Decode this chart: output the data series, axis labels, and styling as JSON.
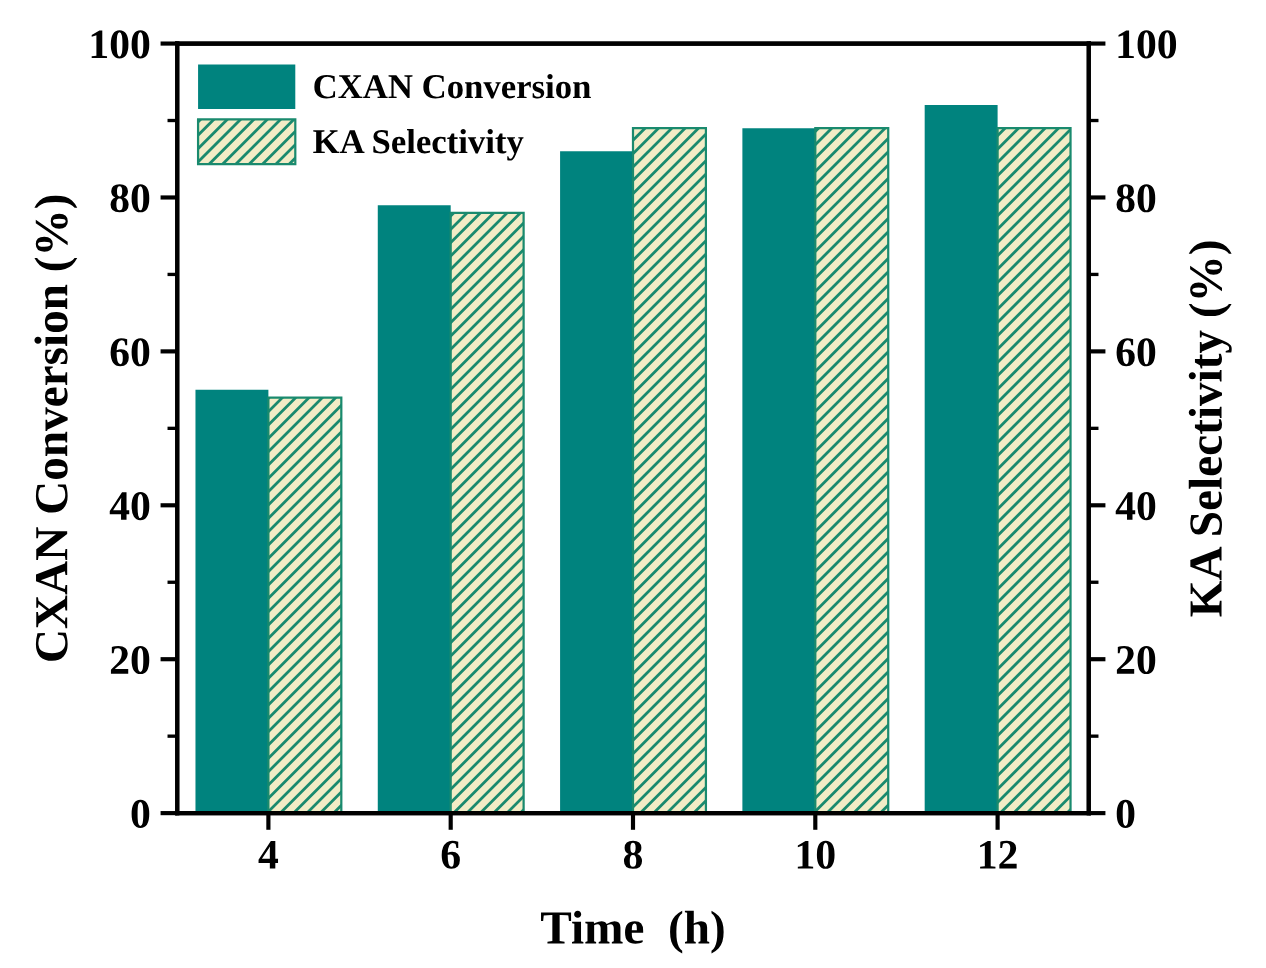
{
  "chart_data": {
    "type": "bar",
    "categories": [
      "4",
      "6",
      "8",
      "10",
      "12"
    ],
    "xlabel": "Time  (h)",
    "ylabel": "CXAN Conversion (%)",
    "y2label": "KA Selectivity (%)",
    "series": [
      {
        "name": "CXAN Conversion",
        "color": "#00837e",
        "values": [
          55,
          79,
          86,
          89,
          92
        ]
      },
      {
        "name": "KA Selectivity",
        "color": "#1a8a6e",
        "values": [
          54,
          78,
          89,
          89,
          89
        ]
      }
    ],
    "ylim": [
      0,
      100
    ],
    "yticks": [
      0,
      20,
      40,
      60,
      80,
      100
    ],
    "y2lim": [
      0,
      100
    ],
    "y2ticks": [
      0,
      20,
      40,
      60,
      80,
      100
    ],
    "legend": "top left",
    "grid": false
  }
}
